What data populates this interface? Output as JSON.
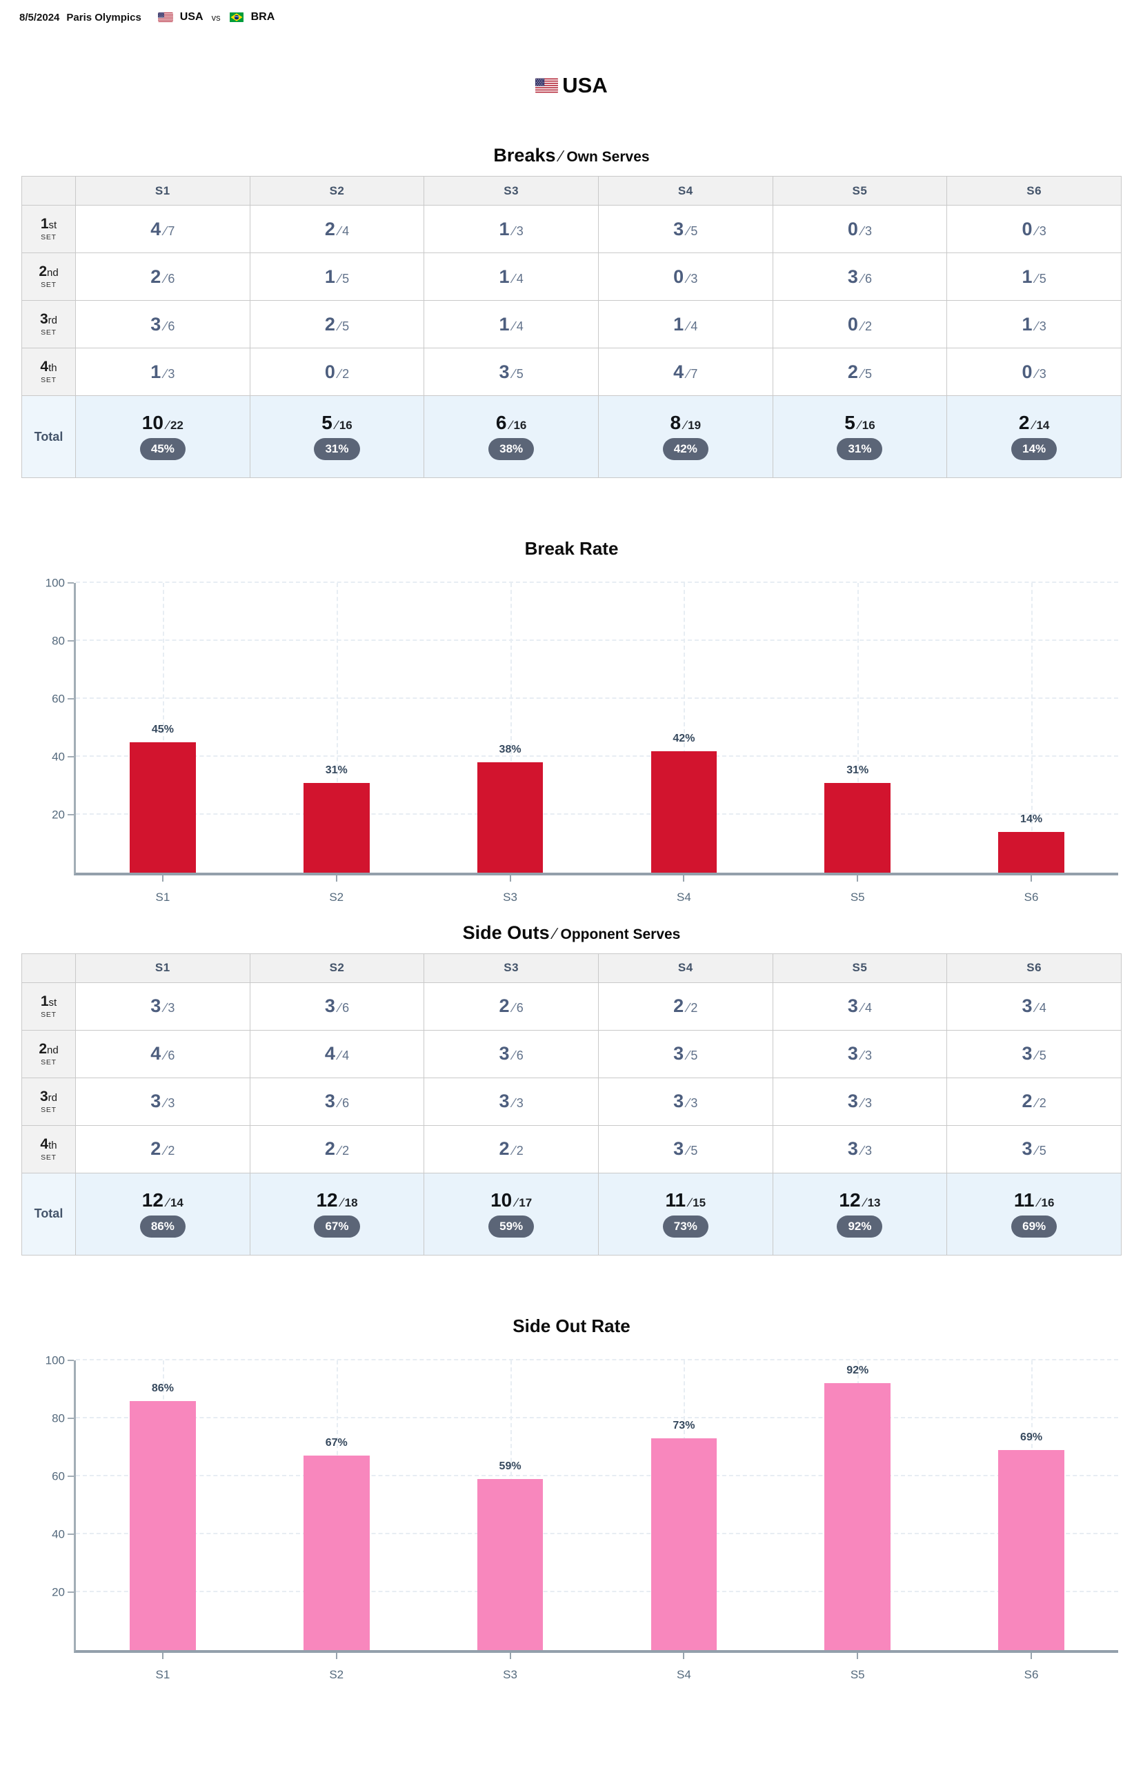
{
  "match_header": {
    "date": "8/5/2024",
    "event": "Paris Olympics",
    "team1": {
      "flag_icon": "usa-flag",
      "name": "USA"
    },
    "vs": "vs",
    "team2": {
      "flag_icon": "brazil-flag",
      "name": "BRA"
    }
  },
  "team_title": {
    "flag_icon": "usa-flag",
    "name": "USA"
  },
  "fraction_sep": "∕",
  "colors": {
    "break_bar": "#d2142e",
    "sideout_bar": "#f887bd",
    "badge_bg": "#5b6577",
    "total_row_bg": "#e9f3fb",
    "header_row_bg": "#f1f1f1"
  },
  "tables": [
    {
      "id": "breaks",
      "heading": {
        "main": "Breaks",
        "sep": "∕",
        "sub": "Own Serves"
      },
      "columns": [
        "S1",
        "S2",
        "S3",
        "S4",
        "S5",
        "S6"
      ],
      "row_labels": [
        {
          "ordinal": "1",
          "suffix": "st",
          "unit": "SET"
        },
        {
          "ordinal": "2",
          "suffix": "nd",
          "unit": "SET"
        },
        {
          "ordinal": "3",
          "suffix": "rd",
          "unit": "SET"
        },
        {
          "ordinal": "4",
          "suffix": "th",
          "unit": "SET"
        }
      ],
      "rows": [
        [
          [
            4,
            7
          ],
          [
            2,
            4
          ],
          [
            1,
            3
          ],
          [
            3,
            5
          ],
          [
            0,
            3
          ],
          [
            0,
            3
          ]
        ],
        [
          [
            2,
            6
          ],
          [
            1,
            5
          ],
          [
            1,
            4
          ],
          [
            0,
            3
          ],
          [
            3,
            6
          ],
          [
            1,
            5
          ]
        ],
        [
          [
            3,
            6
          ],
          [
            2,
            5
          ],
          [
            1,
            4
          ],
          [
            1,
            4
          ],
          [
            0,
            2
          ],
          [
            1,
            3
          ]
        ],
        [
          [
            1,
            3
          ],
          [
            0,
            2
          ],
          [
            3,
            5
          ],
          [
            4,
            7
          ],
          [
            2,
            5
          ],
          [
            0,
            3
          ]
        ]
      ],
      "total": {
        "label": "Total",
        "cells": [
          [
            10,
            22,
            "45%"
          ],
          [
            5,
            16,
            "31%"
          ],
          [
            6,
            16,
            "38%"
          ],
          [
            8,
            19,
            "42%"
          ],
          [
            5,
            16,
            "31%"
          ],
          [
            2,
            14,
            "14%"
          ]
        ]
      }
    },
    {
      "id": "sideouts",
      "heading": {
        "main": "Side Outs",
        "sep": "∕",
        "sub": "Opponent Serves"
      },
      "columns": [
        "S1",
        "S2",
        "S3",
        "S4",
        "S5",
        "S6"
      ],
      "row_labels": [
        {
          "ordinal": "1",
          "suffix": "st",
          "unit": "SET"
        },
        {
          "ordinal": "2",
          "suffix": "nd",
          "unit": "SET"
        },
        {
          "ordinal": "3",
          "suffix": "rd",
          "unit": "SET"
        },
        {
          "ordinal": "4",
          "suffix": "th",
          "unit": "SET"
        }
      ],
      "rows": [
        [
          [
            3,
            3
          ],
          [
            3,
            6
          ],
          [
            2,
            6
          ],
          [
            2,
            2
          ],
          [
            3,
            4
          ],
          [
            3,
            4
          ]
        ],
        [
          [
            4,
            6
          ],
          [
            4,
            4
          ],
          [
            3,
            6
          ],
          [
            3,
            5
          ],
          [
            3,
            3
          ],
          [
            3,
            5
          ]
        ],
        [
          [
            3,
            3
          ],
          [
            3,
            6
          ],
          [
            3,
            3
          ],
          [
            3,
            3
          ],
          [
            3,
            3
          ],
          [
            2,
            2
          ]
        ],
        [
          [
            2,
            2
          ],
          [
            2,
            2
          ],
          [
            2,
            2
          ],
          [
            3,
            5
          ],
          [
            3,
            3
          ],
          [
            3,
            5
          ]
        ]
      ],
      "total": {
        "label": "Total",
        "cells": [
          [
            12,
            14,
            "86%"
          ],
          [
            12,
            18,
            "67%"
          ],
          [
            10,
            17,
            "59%"
          ],
          [
            11,
            15,
            "73%"
          ],
          [
            12,
            13,
            "92%"
          ],
          [
            11,
            16,
            "69%"
          ]
        ]
      }
    }
  ],
  "chart_data": [
    {
      "type": "bar",
      "title": "Break Rate",
      "categories": [
        "S1",
        "S2",
        "S3",
        "S4",
        "S5",
        "S6"
      ],
      "values": [
        45,
        31,
        38,
        42,
        31,
        14
      ],
      "data_labels": [
        "45%",
        "31%",
        "38%",
        "42%",
        "31%",
        "14%"
      ],
      "xlabel": "",
      "ylabel": "",
      "ylim": [
        0,
        100
      ],
      "yticks": [
        20,
        40,
        60,
        80,
        100
      ],
      "bar_color": "#d2142e",
      "grid": true,
      "legend": false
    },
    {
      "type": "bar",
      "title": "Side Out Rate",
      "categories": [
        "S1",
        "S2",
        "S3",
        "S4",
        "S5",
        "S6"
      ],
      "values": [
        86,
        67,
        59,
        73,
        92,
        69
      ],
      "data_labels": [
        "86%",
        "67%",
        "59%",
        "73%",
        "92%",
        "69%"
      ],
      "xlabel": "",
      "ylabel": "",
      "ylim": [
        0,
        100
      ],
      "yticks": [
        20,
        40,
        60,
        80,
        100
      ],
      "bar_color": "#f887bd",
      "grid": true,
      "legend": false
    }
  ]
}
